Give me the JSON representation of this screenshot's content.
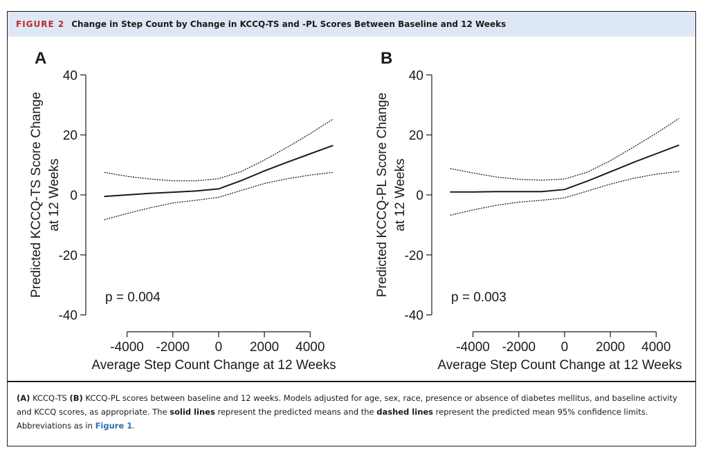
{
  "header": {
    "label": "FIGURE 2",
    "title": "Change in Step Count by Change in KCCQ-TS and -PL Scores Between Baseline and 12 Weeks"
  },
  "chart_data": [
    {
      "type": "line",
      "panel": "A",
      "xlabel": "Average Step Count Change at 12 Weeks",
      "ylabel_lines": [
        "Predicted KCCQ-TS Score Change",
        "at 12 Weeks"
      ],
      "xlim": [
        -5800,
        5200
      ],
      "ylim": [
        -41,
        41
      ],
      "xticks": [
        -4000,
        -2000,
        0,
        2000,
        4000
      ],
      "yticks": [
        40,
        20,
        0,
        -20,
        -40
      ],
      "annotation": "p = 0.004",
      "series": [
        {
          "role": "upper",
          "style": "dashed",
          "x": [
            -5000,
            -4000,
            -3000,
            -2000,
            -1000,
            0,
            1000,
            2000,
            3000,
            4000,
            5000
          ],
          "y": [
            7.5,
            6.2,
            5.3,
            4.7,
            4.7,
            5.4,
            7.8,
            11.6,
            15.9,
            20.4,
            25.3
          ]
        },
        {
          "role": "mean",
          "style": "solid",
          "x": [
            -5000,
            -4000,
            -3000,
            -2000,
            -1000,
            0,
            1000,
            2000,
            3000,
            4000,
            5000
          ],
          "y": [
            -0.5,
            0,
            0.5,
            0.9,
            1.3,
            2.0,
            4.8,
            8.0,
            10.9,
            13.7,
            16.5
          ]
        },
        {
          "role": "lower",
          "style": "dashed",
          "x": [
            -5000,
            -4000,
            -3000,
            -2000,
            -1000,
            0,
            1000,
            2000,
            3000,
            4000,
            5000
          ],
          "y": [
            -8.3,
            -6.2,
            -4.3,
            -2.7,
            -1.8,
            -0.8,
            1.5,
            3.8,
            5.4,
            6.6,
            7.5
          ]
        }
      ]
    },
    {
      "type": "line",
      "panel": "B",
      "xlabel": "Average Step Count Change at 12 Weeks",
      "ylabel_lines": [
        "Predicted KCCQ-PL Score Change",
        "at 12 Weeks"
      ],
      "xlim": [
        -5800,
        5200
      ],
      "ylim": [
        -41,
        41
      ],
      "xticks": [
        -4000,
        -2000,
        0,
        2000,
        4000
      ],
      "yticks": [
        40,
        20,
        0,
        -20,
        -40
      ],
      "annotation": "p = 0.003",
      "series": [
        {
          "role": "upper",
          "style": "dashed",
          "x": [
            -5000,
            -4000,
            -3000,
            -2000,
            -1000,
            0,
            1000,
            2000,
            3000,
            4000,
            5000
          ],
          "y": [
            8.8,
            7.3,
            6.0,
            5.2,
            4.9,
            5.3,
            7.6,
            11.4,
            15.9,
            20.5,
            25.5
          ]
        },
        {
          "role": "mean",
          "style": "solid",
          "x": [
            -5000,
            -4000,
            -3000,
            -2000,
            -1000,
            0,
            1000,
            2000,
            3000,
            4000,
            5000
          ],
          "y": [
            1.0,
            1.0,
            1.1,
            1.1,
            1.1,
            1.8,
            4.6,
            7.7,
            10.8,
            13.7,
            16.6
          ]
        },
        {
          "role": "lower",
          "style": "dashed",
          "x": [
            -5000,
            -4000,
            -3000,
            -2000,
            -1000,
            0,
            1000,
            2000,
            3000,
            4000,
            5000
          ],
          "y": [
            -6.8,
            -5.0,
            -3.5,
            -2.4,
            -1.8,
            -1.0,
            1.3,
            3.6,
            5.5,
            6.9,
            7.8
          ]
        }
      ]
    }
  ],
  "caption": {
    "a_label": "(A)",
    "a_text": " KCCQ-TS ",
    "b_label": "(B)",
    "b_text": " KCCQ-PL scores between baseline and 12 weeks. Models adjusted for age, sex, race, presence or absence of diabetes mellitus, and baseline activity and KCCQ scores, as appropriate. The ",
    "solid": "solid lines",
    "mid": " represent the predicted means and the ",
    "dashed": "dashed lines",
    "tail": " represent the predicted mean 95% confidence limits. Abbreviations as in ",
    "ref": "Figure 1",
    "end": "."
  }
}
